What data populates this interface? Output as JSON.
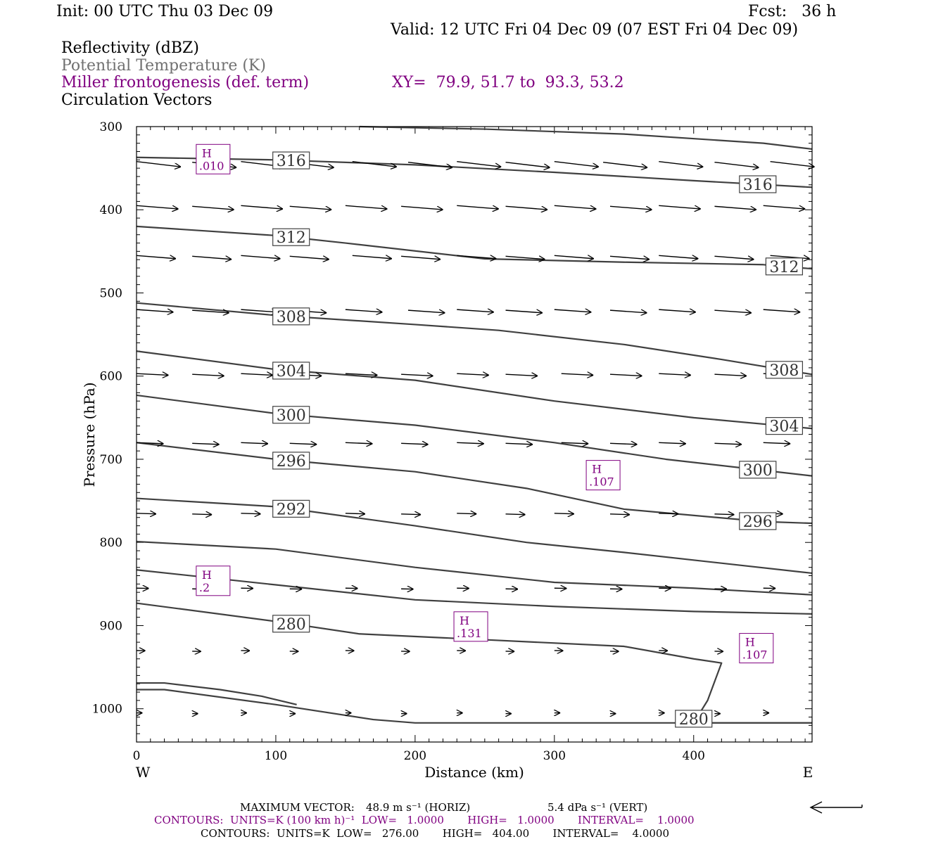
{
  "header": {
    "init": "Init: 00 UTC Thu 03 Dec 09",
    "fcst": "Fcst:   36 h",
    "valid": "Valid: 12 UTC Fri 04 Dec 09 (07 EST Fri 04 Dec 09)",
    "fields": [
      "Reflectivity (dBZ)",
      "Potential Temperature (K)",
      "Miller frontogenesis (def. term)",
      "Circulation Vectors"
    ],
    "xy": "XY=  79.9, 51.7 to  93.3, 53.2"
  },
  "colors": {
    "theta": "#404040",
    "frontogenesis": "#800080",
    "vectors": "#000000"
  },
  "footer": {
    "max_vector_label": "MAXIMUM VECTOR:",
    "max_vector_horiz": "48.9 m s⁻¹ (HORIZ)",
    "max_vector_vert": "5.4 dPa s⁻¹ (VERT)",
    "contours1": "CONTOURS:  UNITS=K (100 km h)⁻¹  LOW=   1.0000       HIGH=   1.0000       INTERVAL=    1.0000",
    "contours2": "CONTOURS:  UNITS=K  LOW=   276.00       HIGH=   404.00       INTERVAL=    4.0000"
  },
  "chart_data": {
    "type": "line",
    "xlabel": "Distance (km)",
    "ylabel": "Pressure (hPa)",
    "xlim": [
      0,
      485
    ],
    "ylim": [
      300,
      1040
    ],
    "y_inverted": true,
    "x_ticks": [
      "0",
      "100",
      "200",
      "300",
      "400"
    ],
    "y_ticks": [
      "300",
      "400",
      "500",
      "600",
      "700",
      "800",
      "900",
      "1000"
    ],
    "x_end_labels": {
      "left": "W",
      "right": "E"
    },
    "theta_contours": [
      {
        "x": [
          160,
          250,
          350,
          450,
          485
        ],
        "p": [
          300,
          303,
          309,
          320,
          327
        ]
      },
      {
        "label": "316",
        "x": [
          0,
          100,
          200,
          300,
          400,
          485
        ],
        "p": [
          337,
          340,
          346,
          355,
          365,
          373
        ]
      },
      {
        "label": "312",
        "x": [
          0,
          100,
          150,
          250,
          350,
          450,
          485
        ],
        "p": [
          420,
          431,
          440,
          459,
          463,
          466,
          471
        ]
      },
      {
        "label": "308",
        "x": [
          0,
          100,
          200,
          260,
          350,
          420,
          485
        ],
        "p": [
          512,
          527,
          538,
          545,
          562,
          580,
          598
        ]
      },
      {
        "label": "304",
        "x": [
          0,
          100,
          200,
          300,
          400,
          485
        ],
        "p": [
          570,
          592,
          605,
          630,
          650,
          663
        ]
      },
      {
        "label": "300",
        "x": [
          0,
          100,
          200,
          300,
          380,
          485
        ],
        "p": [
          623,
          645,
          659,
          680,
          700,
          720
        ]
      },
      {
        "label": "296",
        "x": [
          0,
          100,
          200,
          280,
          350,
          450,
          485
        ],
        "p": [
          680,
          700,
          715,
          735,
          760,
          775,
          777
        ]
      },
      {
        "label": "292",
        "x": [
          0,
          100,
          200,
          280,
          350,
          485
        ],
        "p": [
          747,
          757,
          780,
          800,
          812,
          837
        ]
      },
      {
        "x": [
          0,
          100,
          200,
          300,
          400,
          485
        ],
        "p": [
          799,
          808,
          830,
          848,
          855,
          863
        ]
      },
      {
        "x": [
          0,
          100,
          200,
          300,
          400,
          485
        ],
        "p": [
          833,
          851,
          869,
          877,
          883,
          886
        ]
      },
      {
        "label": "280",
        "x": [
          0,
          100,
          160,
          250,
          350,
          400,
          420,
          410,
          400,
          485
        ],
        "p": [
          873,
          895,
          910,
          917,
          925,
          940,
          945,
          990,
          1017,
          1017
        ]
      },
      {
        "x": [
          0,
          20,
          60,
          90,
          115
        ],
        "p": [
          969,
          969,
          977,
          985,
          995
        ]
      },
      {
        "x": [
          0,
          20,
          100,
          170,
          200,
          280,
          485
        ],
        "p": [
          977,
          977,
          995,
          1013,
          1017,
          1017,
          1017
        ]
      }
    ],
    "frontogenesis_maxima": [
      {
        "x": 55,
        "p": 340,
        "label": "H",
        "value": ".010"
      },
      {
        "x": 335,
        "p": 720,
        "label": "H",
        "value": ".107"
      },
      {
        "x": 55,
        "p": 847,
        "label": "H",
        "value": ".2"
      },
      {
        "x": 240,
        "p": 902,
        "label": "H",
        "value": ".131"
      },
      {
        "x": 445,
        "p": 928,
        "label": "H",
        "value": ".107"
      }
    ],
    "vector_levels": [
      {
        "p": 342,
        "xs": [
          0,
          40,
          75,
          110,
          155,
          195,
          230,
          265,
          300,
          335,
          375,
          415,
          455
        ],
        "u": 0.9,
        "w": 0.12
      },
      {
        "p": 395,
        "xs": [
          0,
          40,
          75,
          110,
          150,
          190,
          230,
          265,
          300,
          340,
          375,
          415,
          450
        ],
        "u": 0.85,
        "w": 0.08
      },
      {
        "p": 455,
        "xs": [
          0,
          40,
          75,
          110,
          155,
          190,
          230,
          265,
          300,
          340,
          375,
          415,
          455
        ],
        "u": 0.8,
        "w": 0.08
      },
      {
        "p": 520,
        "xs": [
          0,
          40,
          75,
          110,
          150,
          195,
          230,
          265,
          300,
          340,
          375,
          415,
          450
        ],
        "u": 0.75,
        "w": 0.07
      },
      {
        "p": 597,
        "xs": [
          0,
          40,
          75,
          110,
          150,
          190,
          230,
          265,
          305,
          340,
          375,
          415,
          450
        ],
        "u": 0.65,
        "w": 0.05
      },
      {
        "p": 680,
        "xs": [
          0,
          40,
          75,
          110,
          150,
          190,
          230,
          265,
          305,
          340,
          375,
          415,
          450
        ],
        "u": 0.55,
        "w": 0.04
      },
      {
        "p": 765,
        "xs": [
          0,
          40,
          75,
          110,
          150,
          190,
          230,
          265,
          300,
          340,
          375,
          415,
          450
        ],
        "u": 0.4,
        "w": 0.03
      },
      {
        "p": 855,
        "xs": [
          0,
          40,
          75,
          110,
          150,
          190,
          230,
          265,
          300,
          340,
          375,
          415,
          450
        ],
        "u": 0.25,
        "w": 0.02
      },
      {
        "p": 930,
        "xs": [
          0,
          40,
          75,
          110,
          150,
          190,
          230,
          265,
          300,
          340,
          375,
          415,
          450
        ],
        "u": 0.18,
        "w": 0.02
      },
      {
        "p": 1005,
        "xs": [
          0,
          40,
          75,
          110,
          150,
          190,
          230,
          265,
          300,
          340,
          375,
          415,
          450
        ],
        "u": 0.12,
        "w": 0.0
      }
    ]
  }
}
